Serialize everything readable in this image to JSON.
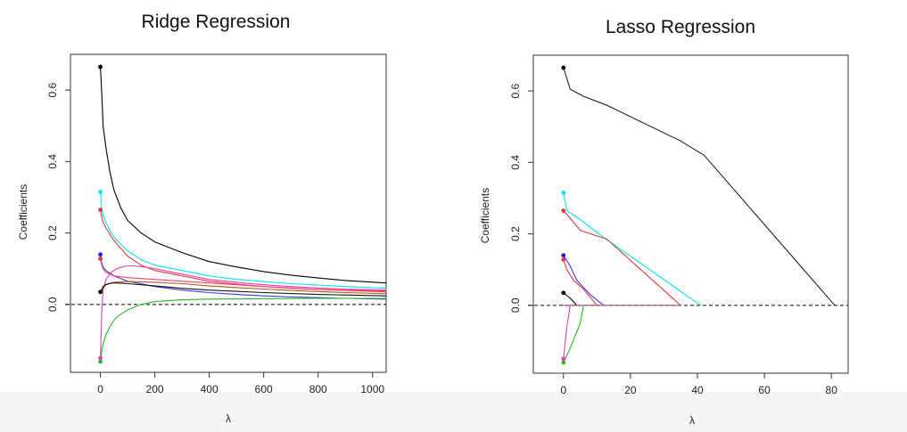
{
  "chart_data": [
    {
      "type": "line",
      "title": "Ridge Regression",
      "xlabel": "λ",
      "ylabel": "Coefficients",
      "xlim": [
        -110,
        1050
      ],
      "ylim": [
        -0.19,
        0.7
      ],
      "xticks": [
        {
          "v": 0,
          "label": "0"
        },
        {
          "v": 200,
          "label": "200"
        },
        {
          "v": 400,
          "label": "400"
        },
        {
          "v": 600,
          "label": "600"
        },
        {
          "v": 800,
          "label": "800"
        },
        {
          "v": 1000,
          "label": "1000"
        }
      ],
      "yticks": [
        {
          "v": 0.0,
          "label": "0.0"
        },
        {
          "v": 0.2,
          "label": "0.2"
        },
        {
          "v": 0.4,
          "label": "0.4"
        },
        {
          "v": 0.6,
          "label": "0.6"
        }
      ],
      "reference_line": {
        "y": 0,
        "style": "dashed"
      },
      "series": [
        {
          "color": "#000000",
          "x": [
            0,
            5,
            10,
            20,
            35,
            50,
            75,
            100,
            150,
            200,
            300,
            400,
            500,
            600,
            700,
            800,
            900,
            1050
          ],
          "y": [
            0.665,
            0.59,
            0.5,
            0.44,
            0.37,
            0.32,
            0.27,
            0.235,
            0.2,
            0.175,
            0.145,
            0.12,
            0.105,
            0.092,
            0.082,
            0.074,
            0.067,
            0.06
          ]
        },
        {
          "color": "#00e5ee",
          "x": [
            0,
            5,
            10,
            20,
            40,
            60,
            100,
            150,
            200,
            300,
            400,
            500,
            600,
            700,
            800,
            900,
            1050
          ],
          "y": [
            0.315,
            0.27,
            0.25,
            0.23,
            0.2,
            0.18,
            0.15,
            0.125,
            0.11,
            0.095,
            0.08,
            0.07,
            0.064,
            0.058,
            0.054,
            0.05,
            0.045
          ]
        },
        {
          "color": "#df3a3a",
          "x": [
            0,
            5,
            10,
            20,
            40,
            60,
            100,
            150,
            200,
            300,
            400,
            500,
            600,
            700,
            800,
            900,
            1050
          ],
          "y": [
            0.265,
            0.245,
            0.23,
            0.215,
            0.19,
            0.17,
            0.135,
            0.11,
            0.095,
            0.08,
            0.065,
            0.057,
            0.05,
            0.046,
            0.042,
            0.039,
            0.035
          ]
        },
        {
          "color": "#3a3ae0",
          "x": [
            0,
            5,
            10,
            20,
            50,
            100,
            200,
            300,
            400,
            500,
            600,
            700,
            800,
            900,
            1050
          ],
          "y": [
            0.14,
            0.115,
            0.105,
            0.095,
            0.08,
            0.065,
            0.05,
            0.04,
            0.033,
            0.028,
            0.024,
            0.021,
            0.019,
            0.017,
            0.015
          ]
        },
        {
          "color": "#e040c0",
          "x": [
            0,
            5,
            10,
            20,
            40,
            60,
            80,
            100,
            120,
            150,
            200,
            300,
            400,
            500,
            600,
            700,
            800,
            900,
            1050
          ],
          "y": [
            -0.15,
            -0.02,
            0.04,
            0.07,
            0.09,
            0.1,
            0.105,
            0.108,
            0.108,
            0.106,
            0.1,
            0.085,
            0.07,
            0.062,
            0.055,
            0.05,
            0.046,
            0.043,
            0.04
          ]
        },
        {
          "color": "#ff4070",
          "x": [
            0,
            5,
            10,
            20,
            50,
            100,
            200,
            300,
            400,
            500,
            600,
            700,
            800,
            900,
            1050
          ],
          "y": [
            0.128,
            0.11,
            0.1,
            0.09,
            0.08,
            0.075,
            0.07,
            0.065,
            0.06,
            0.055,
            0.05,
            0.045,
            0.042,
            0.04,
            0.038
          ]
        },
        {
          "color": "#b05a1e",
          "x": [
            0,
            10,
            20,
            50,
            100,
            200,
            300,
            400,
            500,
            600,
            700,
            800,
            900,
            1050
          ],
          "y": [
            0.03,
            0.045,
            0.055,
            0.062,
            0.064,
            0.062,
            0.058,
            0.052,
            0.047,
            0.043,
            0.039,
            0.036,
            0.033,
            0.03
          ]
        },
        {
          "color": "#111111",
          "x": [
            0,
            10,
            20,
            40,
            60,
            100,
            200,
            300,
            400,
            600,
            800,
            1050
          ],
          "y": [
            0.035,
            0.05,
            0.056,
            0.06,
            0.06,
            0.058,
            0.052,
            0.045,
            0.04,
            0.033,
            0.028,
            0.024
          ]
        },
        {
          "color": "#22bb22",
          "x": [
            0,
            5,
            10,
            20,
            40,
            60,
            100,
            150,
            200,
            300,
            400,
            600,
            800,
            1050
          ],
          "y": [
            -0.16,
            -0.13,
            -0.11,
            -0.085,
            -0.055,
            -0.035,
            -0.015,
            0.0,
            0.008,
            0.013,
            0.015,
            0.016,
            0.017,
            0.017
          ]
        }
      ],
      "start_points": [
        {
          "color": "#000000",
          "y": 0.665
        },
        {
          "color": "#00e5ee",
          "y": 0.315
        },
        {
          "color": "#df3a3a",
          "y": 0.265
        },
        {
          "color": "#2222dd",
          "y": 0.14
        },
        {
          "color": "#df3a3a",
          "y": 0.128
        },
        {
          "color": "#000000",
          "y": 0.035
        },
        {
          "color": "#e040c0",
          "y": -0.15
        },
        {
          "color": "#22bb22",
          "y": -0.16
        }
      ]
    },
    {
      "type": "line",
      "title": "Lasso Regression",
      "xlabel": "λ",
      "ylabel": "Coefficients",
      "xlim": [
        -9,
        85
      ],
      "ylim": [
        -0.19,
        0.7
      ],
      "xticks": [
        {
          "v": 0,
          "label": "0"
        },
        {
          "v": 20,
          "label": "20"
        },
        {
          "v": 40,
          "label": "40"
        },
        {
          "v": 60,
          "label": "60"
        },
        {
          "v": 80,
          "label": "80"
        }
      ],
      "yticks": [
        {
          "v": 0.0,
          "label": "0.0"
        },
        {
          "v": 0.2,
          "label": "0.2"
        },
        {
          "v": 0.4,
          "label": "0.4"
        },
        {
          "v": 0.6,
          "label": "0.6"
        }
      ],
      "reference_line": {
        "y": 0,
        "style": "dashed"
      },
      "series": [
        {
          "color": "#222222",
          "x": [
            0,
            2,
            6,
            13,
            35,
            42,
            81
          ],
          "y": [
            0.665,
            0.605,
            0.585,
            0.56,
            0.46,
            0.42,
            0.0
          ]
        },
        {
          "color": "#00e5ee",
          "x": [
            0,
            1,
            5,
            12,
            41
          ],
          "y": [
            0.315,
            0.265,
            0.24,
            0.19,
            0.0
          ]
        },
        {
          "color": "#df3a3a",
          "x": [
            0,
            1,
            5,
            13,
            35
          ],
          "y": [
            0.265,
            0.255,
            0.21,
            0.185,
            0.0
          ]
        },
        {
          "color": "#3a3ae0",
          "x": [
            0,
            2,
            4,
            8,
            12
          ],
          "y": [
            0.14,
            0.11,
            0.07,
            0.03,
            0.0
          ]
        },
        {
          "color": "#df3a3a",
          "x": [
            0,
            1,
            3,
            6,
            10
          ],
          "y": [
            0.128,
            0.1,
            0.07,
            0.045,
            0.0
          ]
        },
        {
          "color": "#000000",
          "x": [
            0,
            2,
            4
          ],
          "y": [
            0.035,
            0.02,
            0.0
          ]
        },
        {
          "color": "#e040c0",
          "x": [
            0,
            1,
            2
          ],
          "y": [
            -0.15,
            -0.06,
            0.0
          ]
        },
        {
          "color": "#22bb22",
          "x": [
            0,
            2,
            5,
            6
          ],
          "y": [
            -0.16,
            -0.12,
            -0.05,
            0.0
          ]
        },
        {
          "color": "#aa5577",
          "x": [
            0,
            35
          ],
          "y": [
            0.0,
            0.0
          ]
        }
      ],
      "start_points": [
        {
          "color": "#000000",
          "y": 0.665
        },
        {
          "color": "#00e5ee",
          "y": 0.315
        },
        {
          "color": "#df3a3a",
          "y": 0.265
        },
        {
          "color": "#2222dd",
          "y": 0.14
        },
        {
          "color": "#df3a3a",
          "y": 0.128
        },
        {
          "color": "#000000",
          "y": 0.035
        },
        {
          "color": "#e040c0",
          "y": -0.15
        },
        {
          "color": "#22bb22",
          "y": -0.16
        }
      ]
    }
  ]
}
